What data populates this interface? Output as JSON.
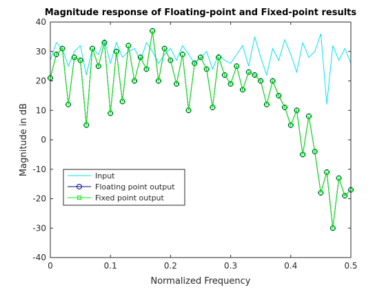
{
  "chart_data": {
    "type": "line",
    "title": "Magnitude response of Floating-point and Fixed-point results",
    "xlabel": "Normalized Frequency",
    "ylabel": "Magnitude in dB",
    "xlim": [
      0,
      0.5
    ],
    "ylim": [
      -40,
      40
    ],
    "xticks": [
      "0",
      "0.1",
      "0.2",
      "0.3",
      "0.4",
      "0.5"
    ],
    "yticks": [
      "-40",
      "-30",
      "-20",
      "-10",
      "0",
      "10",
      "20",
      "30",
      "40"
    ],
    "grid": false,
    "legend_position": "lower-left",
    "series": [
      {
        "name": "Input",
        "color": "#00e0f0",
        "marker": "none",
        "x": [
          0,
          0.01,
          0.02,
          0.03,
          0.04,
          0.05,
          0.06,
          0.07,
          0.08,
          0.09,
          0.1,
          0.11,
          0.12,
          0.13,
          0.14,
          0.15,
          0.16,
          0.17,
          0.18,
          0.19,
          0.2,
          0.21,
          0.22,
          0.23,
          0.24,
          0.25,
          0.26,
          0.27,
          0.28,
          0.29,
          0.3,
          0.31,
          0.32,
          0.33,
          0.34,
          0.35,
          0.36,
          0.37,
          0.38,
          0.39,
          0.4,
          0.41,
          0.42,
          0.43,
          0.44,
          0.45,
          0.46,
          0.47,
          0.48,
          0.49,
          0.5
        ],
        "values": [
          27,
          33,
          31,
          25,
          30,
          32,
          22,
          31,
          29,
          34,
          26,
          33,
          28,
          30,
          31,
          27,
          33,
          30,
          26,
          29,
          31,
          27,
          32,
          29,
          26,
          28,
          30,
          24,
          29,
          27,
          26,
          29,
          32,
          25,
          35,
          28,
          22,
          31,
          27,
          34,
          29,
          23,
          33,
          28,
          30,
          36,
          12,
          32,
          27,
          31,
          26
        ]
      },
      {
        "name": "Floating point output",
        "color": "#000080",
        "marker": "circle",
        "x": [
          0,
          0.01,
          0.02,
          0.03,
          0.04,
          0.05,
          0.06,
          0.07,
          0.08,
          0.09,
          0.1,
          0.11,
          0.12,
          0.13,
          0.14,
          0.15,
          0.16,
          0.17,
          0.18,
          0.19,
          0.2,
          0.21,
          0.22,
          0.23,
          0.24,
          0.25,
          0.26,
          0.27,
          0.28,
          0.29,
          0.3,
          0.31,
          0.32,
          0.33,
          0.34,
          0.35,
          0.36,
          0.37,
          0.38,
          0.39,
          0.4,
          0.41,
          0.42,
          0.43,
          0.44,
          0.45,
          0.46,
          0.47,
          0.48,
          0.49,
          0.5
        ],
        "values": [
          21,
          29,
          31,
          12,
          28,
          27,
          5,
          31,
          25,
          33,
          9,
          30,
          13,
          32,
          20,
          28,
          24,
          37,
          20,
          31,
          27,
          19,
          29,
          10,
          26,
          28,
          24,
          11,
          28,
          22,
          19,
          25,
          17,
          23,
          22,
          20,
          12,
          20,
          15,
          11,
          5,
          10,
          -5,
          8,
          -4,
          -18,
          -11,
          -30,
          -13,
          -19,
          -17
        ]
      },
      {
        "name": "Fixed point output",
        "color": "#00ee00",
        "marker": "square",
        "x": [
          0,
          0.01,
          0.02,
          0.03,
          0.04,
          0.05,
          0.06,
          0.07,
          0.08,
          0.09,
          0.1,
          0.11,
          0.12,
          0.13,
          0.14,
          0.15,
          0.16,
          0.17,
          0.18,
          0.19,
          0.2,
          0.21,
          0.22,
          0.23,
          0.24,
          0.25,
          0.26,
          0.27,
          0.28,
          0.29,
          0.3,
          0.31,
          0.32,
          0.33,
          0.34,
          0.35,
          0.36,
          0.37,
          0.38,
          0.39,
          0.4,
          0.41,
          0.42,
          0.43,
          0.44,
          0.45,
          0.46,
          0.47,
          0.48,
          0.49,
          0.5
        ],
        "values": [
          21,
          29,
          31,
          12,
          28,
          27,
          5,
          31,
          25,
          33,
          9,
          30,
          13,
          32,
          20,
          28,
          24,
          37,
          20,
          31,
          27,
          19,
          29,
          10,
          26,
          28,
          24,
          11,
          28,
          22,
          19,
          25,
          17,
          23,
          22,
          20,
          12,
          20,
          15,
          11,
          5,
          10,
          -5,
          8,
          -4,
          -18,
          -11,
          -30,
          -13,
          -19,
          -17
        ]
      }
    ]
  }
}
